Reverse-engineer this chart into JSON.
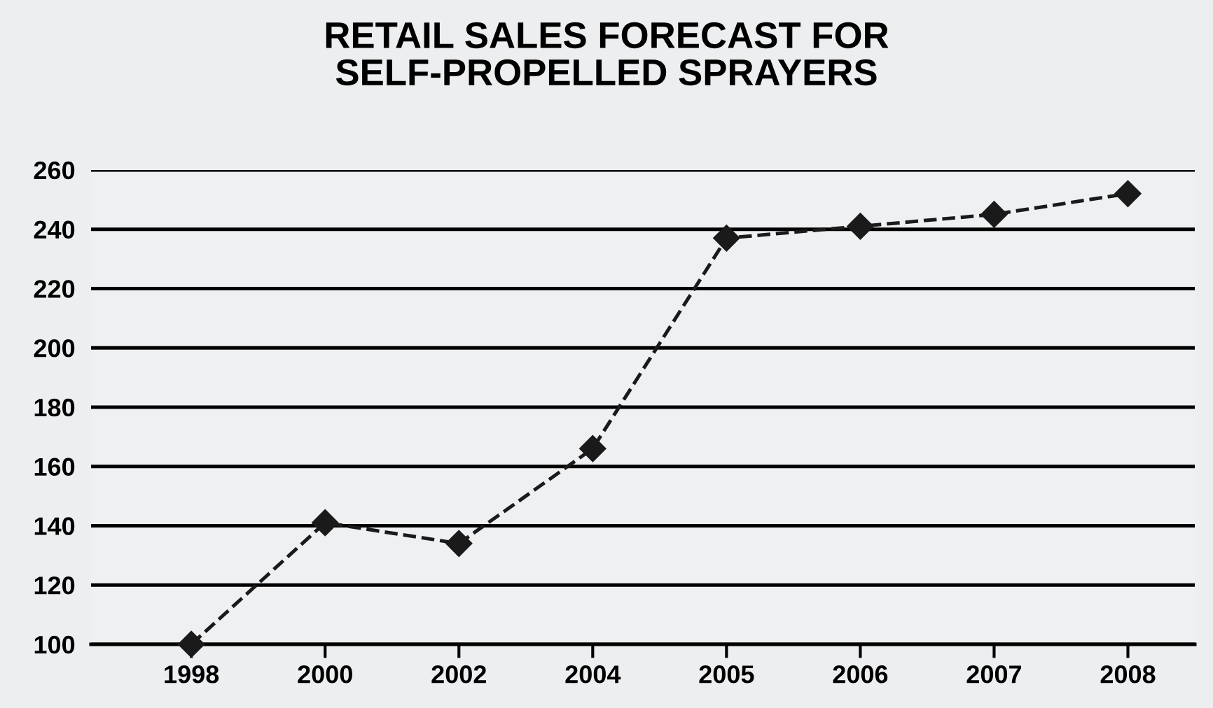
{
  "chart_data": {
    "type": "line",
    "title": "RETAIL SALES FORECAST FOR\nSELF-PROPELLED SPRAYERS",
    "categories": [
      "1998",
      "2000",
      "2002",
      "2004",
      "2005",
      "2006",
      "2007",
      "2008"
    ],
    "series": [
      {
        "color": "#1a1a1a",
        "values": [
          100,
          141,
          134,
          166,
          237,
          241,
          245,
          252
        ]
      }
    ],
    "ylim": [
      100,
      260
    ],
    "yticks": [
      100,
      120,
      140,
      160,
      180,
      200,
      220,
      240,
      260
    ],
    "grid": "y",
    "marker": "diamond",
    "line_style": "dashed",
    "legend": false
  }
}
